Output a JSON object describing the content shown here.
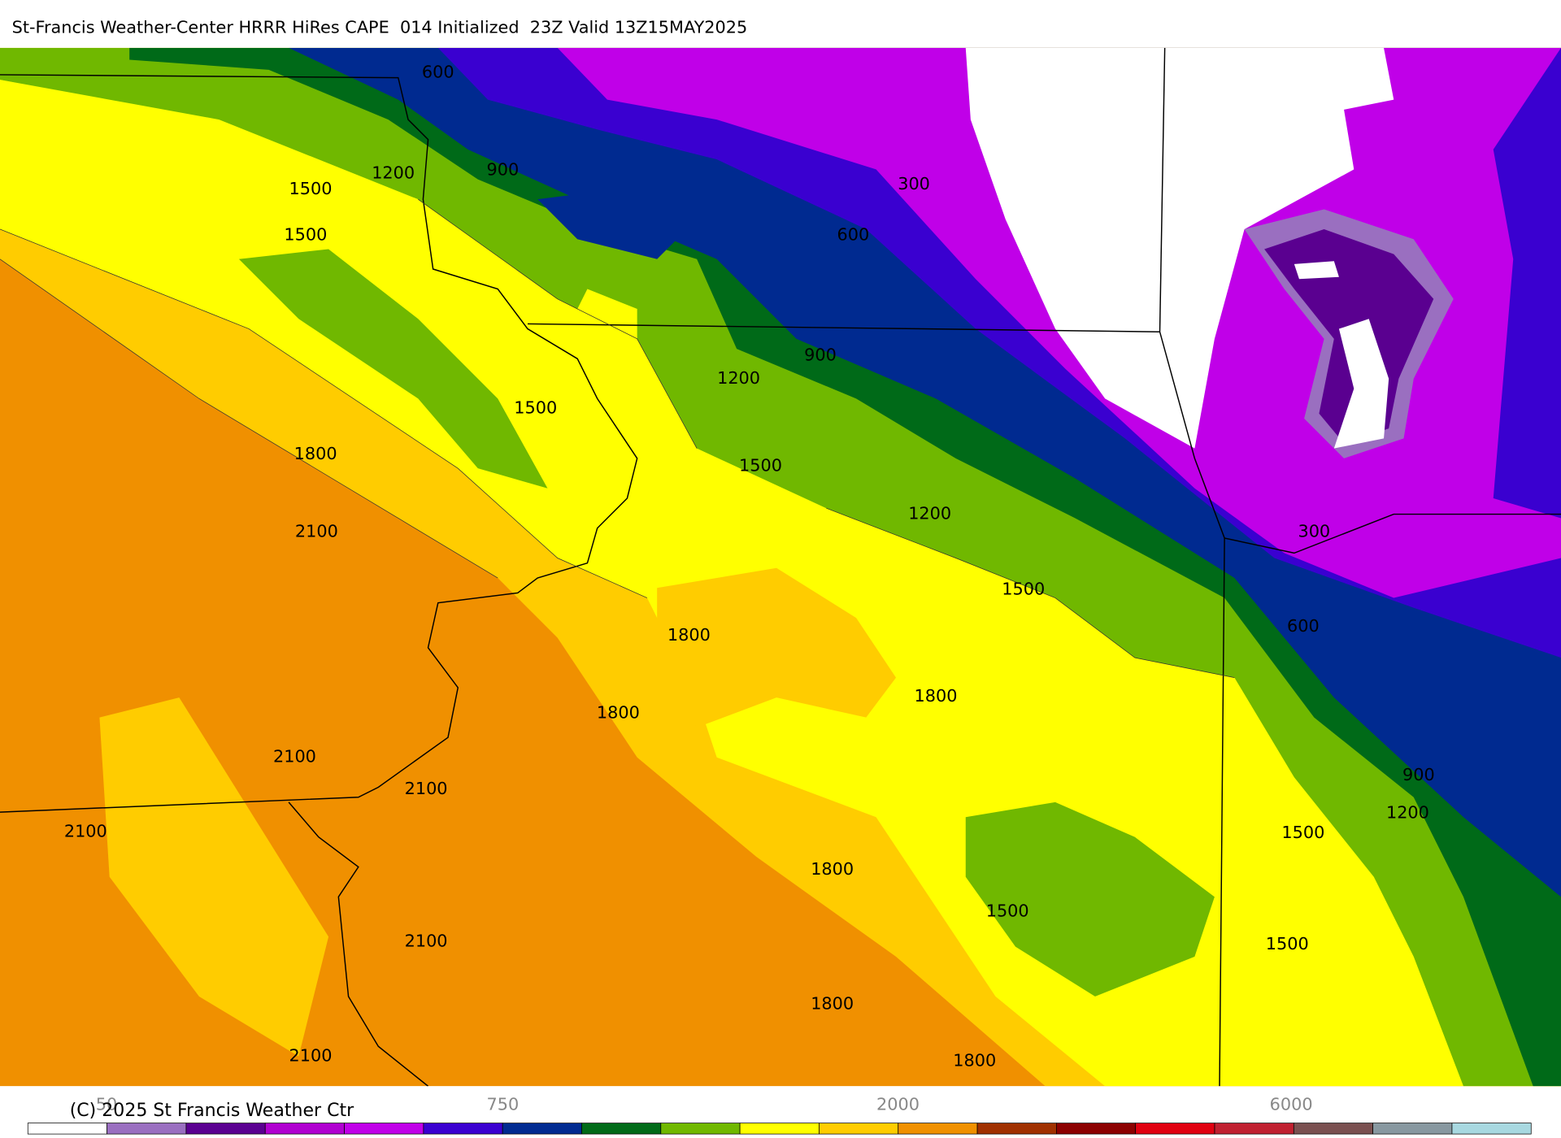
{
  "header": {
    "title": "St-Francis Weather-Center HRRR HiRes CAPE  014 Initialized  23Z Valid 13Z15MAY2025"
  },
  "contour_labels": [
    600,
    1200,
    900,
    300,
    1500,
    1500,
    600,
    900,
    1200,
    1500,
    1800,
    1500,
    1200,
    2100,
    300,
    1500,
    600,
    1800,
    1800,
    1800,
    2100,
    2100,
    900,
    1200,
    2100,
    1500,
    1800,
    1500,
    2100,
    1500,
    1800,
    2100,
    1800
  ],
  "colorbar": {
    "labels": [
      "50",
      "750",
      "2000",
      "6000"
    ]
  },
  "footer": {
    "copyright": "(C) 2025 St Francis Weather Ctr"
  }
}
